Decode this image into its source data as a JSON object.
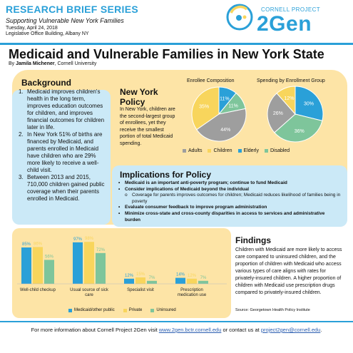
{
  "header": {
    "series": "RESEARCH BRIEF SERIES",
    "subtitle": "Supporting Vulnerable New York Families",
    "date": "Tuesday, April 24, 2018",
    "location": "Legislative Office Building, Albany NY",
    "brand_top": "CORNELL PROJECT",
    "brand_main": "2Gen"
  },
  "title": "Medicaid and Vulnerable Families in New York State",
  "byline": {
    "prefix": "By ",
    "author": "Jamila Michener",
    "suffix": ", Cornell University"
  },
  "background": {
    "title": "Background",
    "items": [
      {
        "num": "1.",
        "text": "Medicaid improves children's health in the long term, improves education outcomes for children, and improves financial outcomes for children later in life."
      },
      {
        "num": "2.",
        "text": "In New York 51% of births are financed by Medicaid, and parents enrolled in Medicaid have children who are 29% more likely to receive a well-child visit."
      },
      {
        "num": "3.",
        "text": "Between 2013 and 2015, 710,000 children gained public coverage when their parents enrolled in Medicaid."
      }
    ]
  },
  "ny_policy": {
    "title_line1": "New York",
    "title_line2": "Policy",
    "text": "In New York, children are the second-largest group of enrollees, yet they receive the smallest portion of total Medicaid spending."
  },
  "pie_legend": [
    "Adults",
    "Children",
    "Elderly",
    "Disabled"
  ],
  "implications": {
    "title": "Implications for Policy",
    "items": [
      "Medicaid is an important anti-poverty program; continue to fund Medicaid",
      "Consider implications of Medicaid beyond the individual",
      "Evaluate consumer feedback to improve program administration",
      "Minimize cross-state and cross-county disparities in access to services and administrative burden"
    ],
    "sub": "Coverage for parents improves outcomes for children; Medicaid reduces likelihood of families being in poverty"
  },
  "findings": {
    "title": "Findings",
    "text": "Children with Medicaid are more likely to access care compared to uninsured children, and the proportion of children with Medicaid who access various types of care aligns with rates for privately-insured children. A higher proportion of children with Medicaid use prescription drugs compared to privately-insured children.",
    "source": "Source: Georgetown Health Policy Institute"
  },
  "footer": {
    "prefix": "For more information about Cornell Project 2Gen visit ",
    "url": "www.2gen.bctr.cornell.edu",
    "middle": " or contact us at ",
    "email": "project2gen@cornell.edu",
    "suffix": "."
  },
  "colors": {
    "blue": "#2aa0d8",
    "yellow": "#f8d55c",
    "gray": "#9e9e9e",
    "green": "#7ec59b",
    "light_blue_card": "#cbe9f7",
    "light_yellow_panel": "#fde4a6"
  },
  "chart_data": [
    {
      "type": "pie",
      "title": "Enrollee Composition",
      "labels": [
        "Adults",
        "Children",
        "Elderly",
        "Disabled"
      ],
      "values": [
        44,
        35,
        11,
        11
      ],
      "colors": [
        "#9e9e9e",
        "#f8d55c",
        "#2aa0d8",
        "#7ec59b"
      ]
    },
    {
      "type": "pie",
      "title": "Spending by Enrollment Group",
      "labels": [
        "Adults",
        "Children",
        "Elderly",
        "Disabled"
      ],
      "values": [
        26,
        12,
        30,
        36
      ],
      "colors": [
        "#9e9e9e",
        "#f8d55c",
        "#2aa0d8",
        "#7ec59b"
      ]
    },
    {
      "type": "bar",
      "categories": [
        "Well-child checkup",
        "Usual source of sick care",
        "Specialist visit",
        "Prescription medication use"
      ],
      "series": [
        {
          "name": "Medicaid/other public",
          "values": [
            85,
            97,
            12,
            14
          ],
          "labels": [
            "85%",
            "97%",
            "12%",
            "14%"
          ],
          "color": "#2aa0d8"
        },
        {
          "name": "Private",
          "values": [
            86,
            98,
            15,
            12
          ],
          "labels": [
            "86%",
            "98%",
            "15%",
            "12%"
          ],
          "color": "#f8d55c"
        },
        {
          "name": "Uninsured",
          "values": [
            56,
            72,
            7,
            7
          ],
          "labels": [
            "56%",
            "72%",
            "7%",
            "7%"
          ],
          "color": "#7ec59b"
        }
      ],
      "ylim": [
        0,
        100
      ]
    }
  ]
}
